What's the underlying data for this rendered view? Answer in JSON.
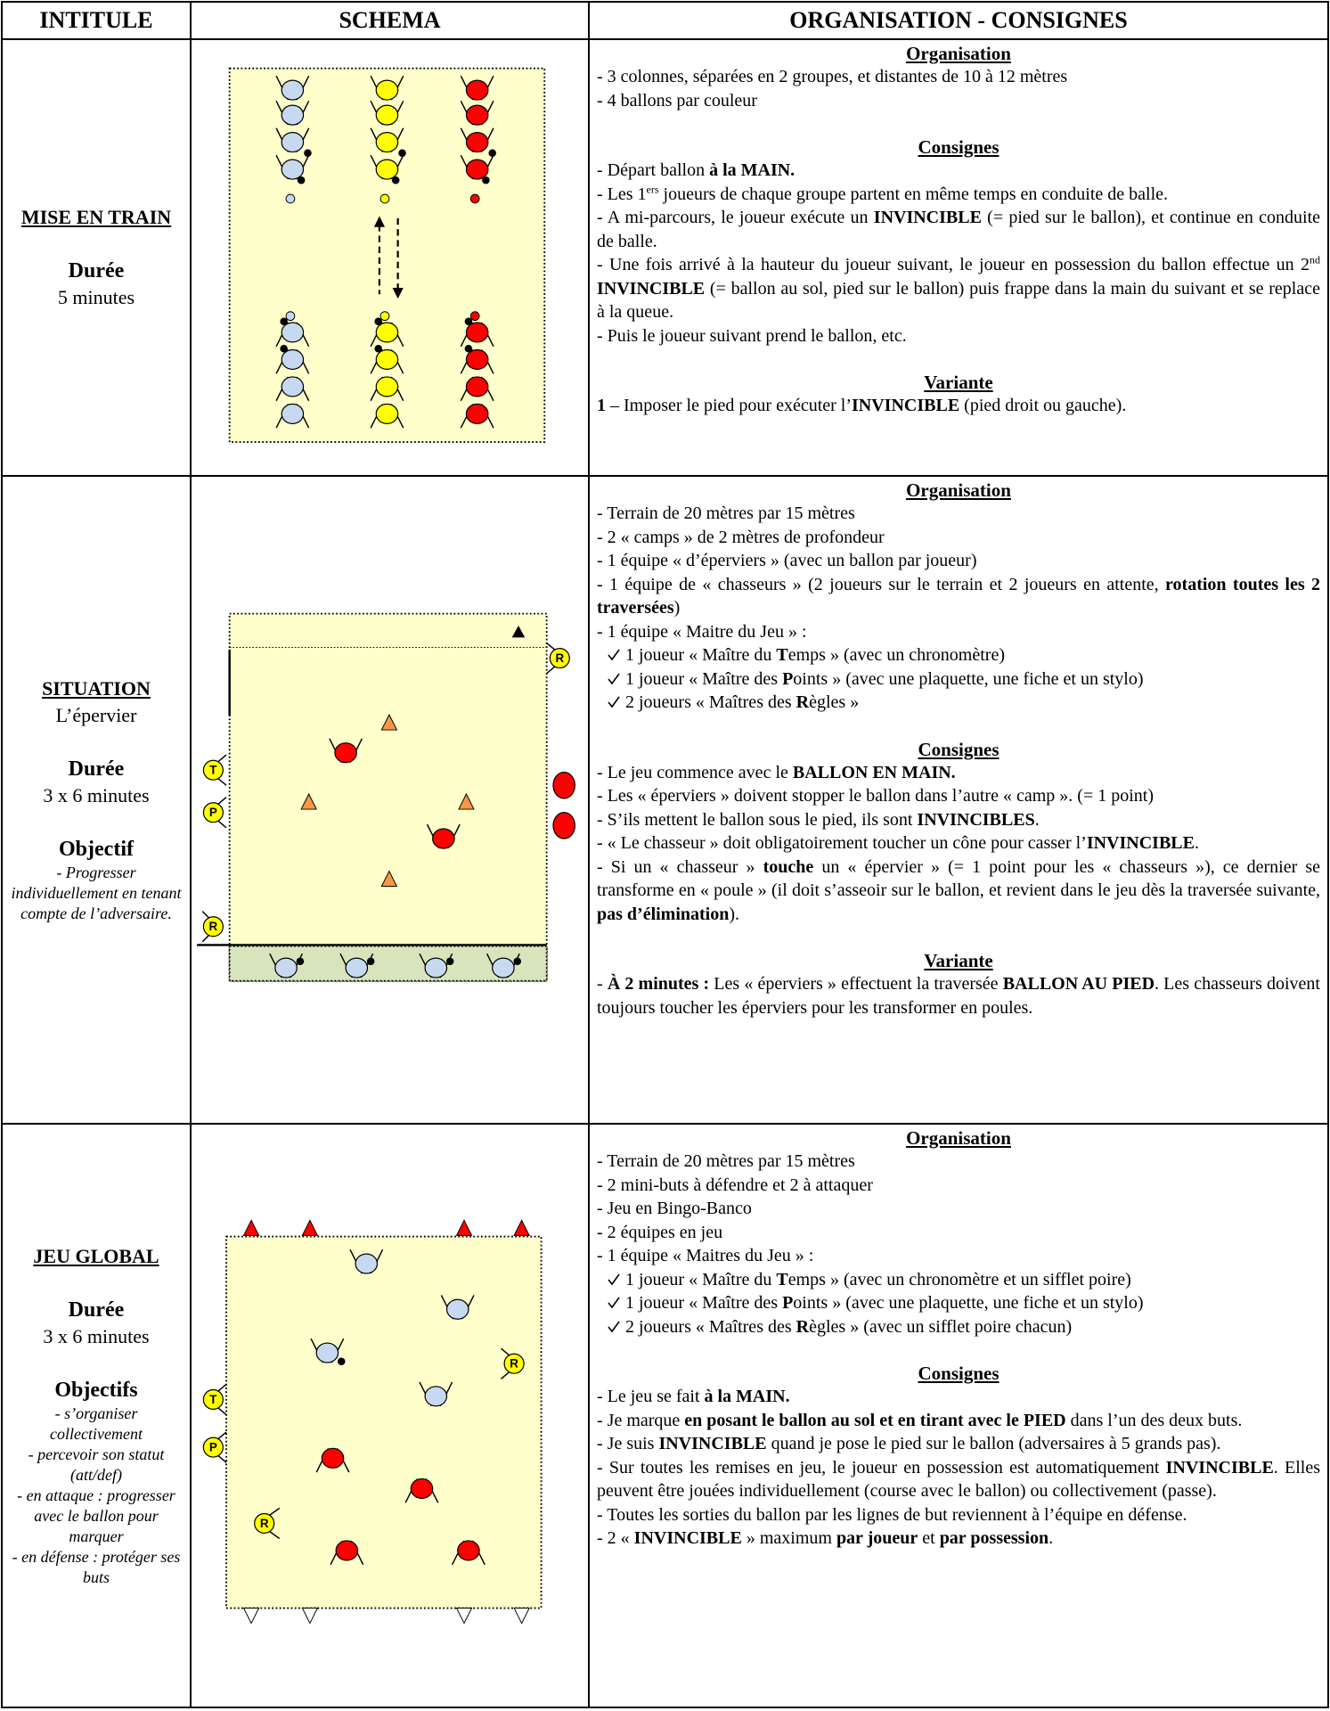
{
  "header": {
    "col1": "INTITULE",
    "col2": "SCHEMA",
    "col3": "ORGANISATION - CONSIGNES"
  },
  "rows": [
    {
      "intitule": {
        "title": "MISE EN TRAIN",
        "duration_label": "Durée",
        "duration": "5 minutes"
      },
      "sections": [
        {
          "heading": "Organisation",
          "items": [
            {
              "runs": [
                "- 3 colonnes, séparées en 2 groupes, et distantes de 10 à 12 mètres"
              ]
            },
            {
              "runs": [
                "- 4 ballons par couleur"
              ]
            }
          ]
        },
        {
          "heading": "Consignes",
          "items": [
            {
              "runs": [
                "- Départ ballon ",
                {
                  "b": "à la MAIN."
                }
              ]
            },
            {
              "runs": [
                "- Les 1",
                {
                  "sup": "ers"
                },
                " joueurs de chaque groupe partent en même temps en conduite de balle."
              ]
            },
            {
              "runs": [
                "- A mi-parcours, le joueur exécute un ",
                {
                  "b": "INVINCIBLE"
                },
                " (= pied sur le ballon), et continue en conduite de balle."
              ]
            },
            {
              "runs": [
                "- Une fois arrivé à la hauteur du joueur suivant, le joueur en possession du ballon effectue un 2",
                {
                  "sup": "nd"
                },
                {
                  "b": " INVINCIBLE"
                },
                " (= ballon au sol, pied sur le ballon) puis frappe dans la main du suivant et se replace à la queue."
              ]
            },
            {
              "runs": [
                "- Puis le joueur suivant prend le ballon, etc."
              ]
            }
          ]
        },
        {
          "heading": "Variante",
          "items": [
            {
              "runs": [
                {
                  "b": "1"
                },
                " – Imposer le pied pour exécuter l’",
                {
                  "b": "INVINCIBLE"
                },
                " (pied droit ou gauche)."
              ]
            }
          ]
        }
      ]
    },
    {
      "intitule": {
        "title": "SITUATION",
        "subtitle": "L’épervier",
        "duration_label": "Durée",
        "duration": "3 x 6 minutes",
        "objective_label": "Objectif",
        "objectives": [
          "- Progresser individuellement en tenant compte de l’adversaire."
        ]
      },
      "schema_labels": {
        "t": "T",
        "p": "P",
        "r": "R"
      },
      "sections": [
        {
          "heading": "Organisation",
          "items": [
            {
              "runs": [
                "- Terrain de 20 mètres par 15 mètres"
              ]
            },
            {
              "runs": [
                "- 2 « camps » de 2 mètres de profondeur"
              ]
            },
            {
              "runs": [
                "- 1 équipe « d’éperviers » (avec un ballon par joueur)"
              ]
            },
            {
              "runs": [
                "- 1 équipe de « chasseurs » (2 joueurs sur le terrain et 2 joueurs en attente, ",
                {
                  "b": "rotation toutes les 2 traversées"
                },
                ")"
              ]
            },
            {
              "runs": [
                "- 1 équipe « Maitre du Jeu » :"
              ]
            },
            {
              "check": true,
              "runs": [
                "1 joueur « Maître du ",
                {
                  "b": "T"
                },
                "emps » (avec un chronomètre)"
              ]
            },
            {
              "check": true,
              "runs": [
                "1 joueur « Maître des ",
                {
                  "b": "P"
                },
                "oints » (avec une plaquette, une fiche et un stylo)"
              ]
            },
            {
              "check": true,
              "runs": [
                "2 joueurs « Maîtres des ",
                {
                  "b": "R"
                },
                "ègles »"
              ]
            }
          ]
        },
        {
          "heading": "Consignes",
          "items": [
            {
              "runs": [
                "- Le jeu commence avec le ",
                {
                  "b": "BALLON EN MAIN."
                }
              ]
            },
            {
              "runs": [
                "- Les « éperviers » doivent stopper le ballon dans l’autre « camp ». (= 1 point)"
              ]
            },
            {
              "runs": [
                "- S’ils mettent le ballon sous le pied, ils sont ",
                {
                  "b": "INVINCIBLES"
                },
                "."
              ]
            },
            {
              "runs": [
                "-   « Le chasseur » doit obligatoirement toucher un cône pour casser l’",
                {
                  "b": "INVINCIBLE"
                },
                "."
              ]
            },
            {
              "runs": [
                "- Si un « chasseur » ",
                {
                  "b": "touche"
                },
                " un « épervier » (= 1 point pour les « chasseurs »), ce dernier se transforme en « poule » (il doit s’asseoir sur le ballon, et revient dans le jeu dès la traversée suivante, ",
                {
                  "b": "pas d’élimination"
                },
                ")."
              ]
            }
          ]
        },
        {
          "heading": "Variante",
          "items": [
            {
              "runs": [
                "- ",
                {
                  "b": "À 2 minutes :"
                },
                " Les « éperviers » effectuent la traversée ",
                {
                  "b": "BALLON AU PIED"
                },
                ". Les chasseurs doivent toujours toucher les éperviers pour les transformer en poules."
              ]
            }
          ]
        }
      ]
    },
    {
      "intitule": {
        "title": "JEU GLOBAL",
        "duration_label": "Durée",
        "duration": "3 x 6 minutes",
        "objective_label": "Objectifs",
        "objectives": [
          "- s’organiser collectivement",
          "- percevoir son statut (att/def)",
          "- en attaque : progresser avec le ballon pour marquer",
          "- en défense : protéger ses buts"
        ]
      },
      "schema_labels": {
        "t": "T",
        "p": "P",
        "r": "R"
      },
      "sections": [
        {
          "heading": "Organisation",
          "items": [
            {
              "runs": [
                "- Terrain de 20 mètres par 15 mètres"
              ]
            },
            {
              "runs": [
                "- 2 mini-buts à défendre et 2 à attaquer"
              ]
            },
            {
              "runs": [
                "- Jeu en Bingo-Banco"
              ]
            },
            {
              "runs": [
                "- 2 équipes en jeu"
              ]
            },
            {
              "runs": [
                "- 1 équipe « Maitres du Jeu » :"
              ]
            },
            {
              "check": true,
              "runs": [
                "1 joueur « Maître du ",
                {
                  "b": "T"
                },
                "emps » (avec un chronomètre et un sifflet poire)"
              ]
            },
            {
              "check": true,
              "runs": [
                "1 joueur « Maître des ",
                {
                  "b": "P"
                },
                "oints » (avec une plaquette, une fiche et un stylo)"
              ]
            },
            {
              "check": true,
              "runs": [
                "2 joueurs « Maîtres des ",
                {
                  "b": "R"
                },
                "ègles » (avec un sifflet poire chacun)"
              ]
            }
          ]
        },
        {
          "heading": "Consignes",
          "items": [
            {
              "runs": [
                "- Le jeu se fait ",
                {
                  "b": "à la MAIN."
                }
              ]
            },
            {
              "runs": [
                "- Je marque ",
                {
                  "b": "en posant le ballon au sol et en tirant avec le PIED"
                },
                " dans l’un des deux buts."
              ]
            },
            {
              "runs": [
                "-  Je suis ",
                {
                  "b": "INVINCIBLE"
                },
                " quand je pose le pied sur le ballon (adversaires à 5 grands pas)."
              ]
            },
            {
              "runs": [
                "- Sur toutes les remises en jeu, le joueur en possession est automatiquement ",
                {
                  "b": "INVINCIBLE"
                },
                ". Elles peuvent être jouées individuellement (course avec le ballon) ou collectivement (passe)."
              ]
            },
            {
              "runs": [
                "- Toutes les sorties du ballon par les lignes de but reviennent à l’équipe en défense."
              ]
            },
            {
              "runs": [
                "- 2 « ",
                {
                  "b": "INVINCIBLE"
                },
                " » maximum ",
                {
                  "b": "par joueur"
                },
                " et ",
                {
                  "b": "par possession"
                },
                "."
              ]
            }
          ]
        }
      ]
    }
  ]
}
